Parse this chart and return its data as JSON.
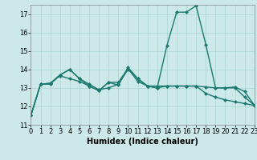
{
  "title": "",
  "xlabel": "Humidex (Indice chaleur)",
  "bg_color": "#cce8e8",
  "line_color": "#1a7a6e",
  "x_values": [
    0,
    1,
    2,
    3,
    4,
    5,
    6,
    7,
    8,
    9,
    10,
    11,
    12,
    13,
    14,
    15,
    16,
    17,
    18,
    19,
    20,
    21,
    22,
    23
  ],
  "series": [
    [
      11.5,
      13.2,
      13.2,
      13.7,
      14.0,
      13.5,
      13.1,
      12.85,
      13.3,
      13.15,
      14.1,
      13.5,
      13.1,
      13.0,
      15.3,
      17.1,
      17.1,
      17.45,
      15.35,
      13.0,
      13.0,
      13.05,
      12.8,
      12.05
    ],
    [
      11.5,
      13.2,
      13.25,
      13.65,
      13.5,
      13.35,
      13.1,
      12.85,
      13.3,
      13.3,
      14.05,
      13.35,
      13.1,
      13.0,
      13.1,
      13.1,
      13.1,
      13.1,
      13.05,
      13.0,
      13.0,
      13.0,
      12.5,
      12.05
    ],
    [
      11.5,
      13.2,
      13.25,
      13.7,
      14.0,
      13.5,
      13.2,
      12.9,
      13.0,
      13.2,
      14.0,
      13.5,
      13.1,
      13.1,
      13.1,
      13.1,
      13.1,
      13.1,
      12.7,
      12.5,
      12.35,
      12.25,
      12.15,
      12.05
    ]
  ],
  "xlim": [
    0,
    23
  ],
  "ylim": [
    11,
    17.5
  ],
  "yticks": [
    11,
    12,
    13,
    14,
    15,
    16,
    17
  ],
  "xticks": [
    0,
    1,
    2,
    3,
    4,
    5,
    6,
    7,
    8,
    9,
    10,
    11,
    12,
    13,
    14,
    15,
    16,
    17,
    18,
    19,
    20,
    21,
    22,
    23
  ],
  "grid_color": "#aad4d0",
  "marker": "D",
  "marker_size": 2.0,
  "line_width": 1.0,
  "tick_fontsize": 6.0,
  "xlabel_fontsize": 7.0
}
